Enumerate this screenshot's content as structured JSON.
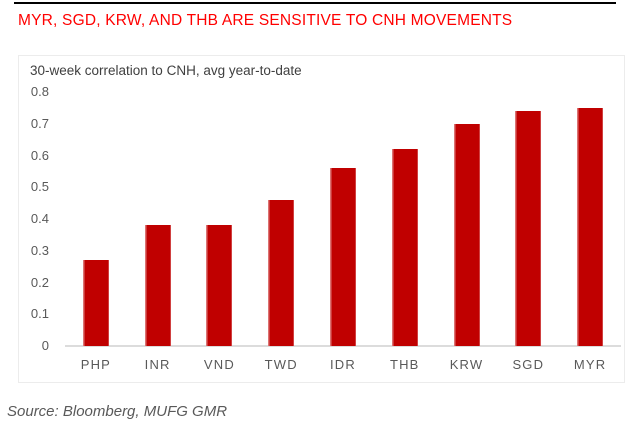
{
  "header": {
    "title": "MYR, SGD, KRW, AND THB ARE SENSITIVE TO CNH MOVEMENTS"
  },
  "chart_data": {
    "type": "bar",
    "title": "30-week correlation to CNH, avg year-to-date",
    "categories": [
      "PHP",
      "INR",
      "VND",
      "TWD",
      "IDR",
      "THB",
      "KRW",
      "SGD",
      "MYR"
    ],
    "values": [
      0.27,
      0.38,
      0.38,
      0.46,
      0.56,
      0.62,
      0.7,
      0.74,
      0.75
    ],
    "xlabel": "",
    "ylabel": "",
    "ylim": [
      0,
      0.8
    ],
    "ytick_interval": 0.1,
    "ytick_labels": [
      "0",
      "0.1",
      "0.2",
      "0.3",
      "0.4",
      "0.5",
      "0.6",
      "0.7",
      "0.8"
    ],
    "grid": false,
    "legend": false,
    "bar_color": "#c00000"
  },
  "footer": {
    "source": "Source: Bloomberg, MUFG GMR"
  },
  "colors": {
    "headline_red": "#ff0000",
    "bar_red": "#c00000",
    "axis_gray": "#dcdcdc",
    "tick_text_gray": "#595959",
    "box_border_gray": "#ececec",
    "top_rule_black": "#000000"
  }
}
